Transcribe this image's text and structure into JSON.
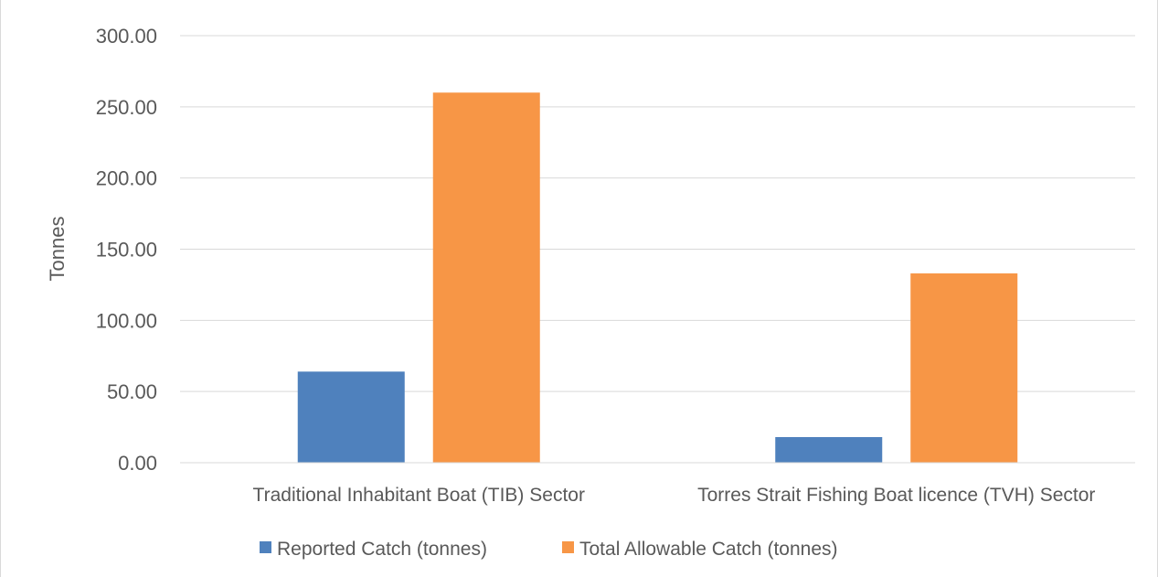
{
  "chart_data": {
    "type": "bar",
    "title": "",
    "xlabel": "",
    "ylabel": "Tonnes",
    "ylim": [
      0,
      300
    ],
    "ytick_step": 50,
    "ytick_format_decimals": 2,
    "grid": true,
    "legend_position": "bottom",
    "categories": [
      "Traditional Inhabitant Boat (TIB) Sector",
      "Torres Strait Fishing Boat licence (TVH) Sector"
    ],
    "series": [
      {
        "name": "Reported Catch (tonnes)",
        "color": "#4f81bd",
        "values": [
          64,
          18
        ]
      },
      {
        "name": "Total Allowable Catch (tonnes)",
        "color": "#f79646",
        "values": [
          260,
          133
        ]
      }
    ]
  }
}
